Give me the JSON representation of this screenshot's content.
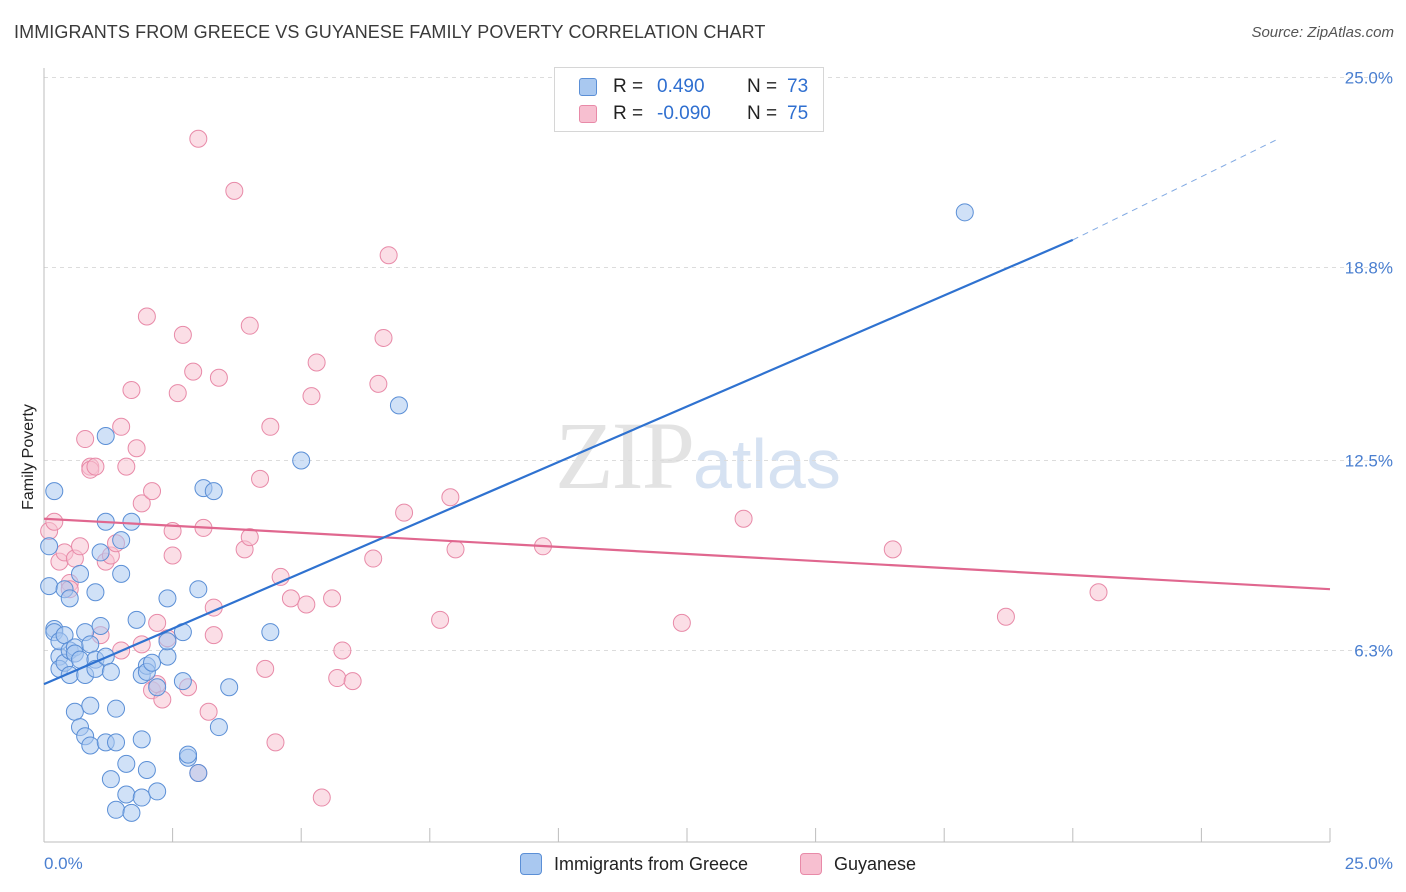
{
  "header": {
    "title": "IMMIGRANTS FROM GREECE VS GUYANESE FAMILY POVERTY CORRELATION CHART",
    "source": "Source: ZipAtlas.com"
  },
  "watermark": {
    "zip": "ZIP",
    "atlas": "atlas"
  },
  "legend": {
    "r_label": "R =",
    "n_label": "N =",
    "rows": [
      {
        "r": "0.490",
        "n": "73",
        "color": "#a9c8f0"
      },
      {
        "r": "-0.090",
        "n": "75",
        "color": "#f7bfd0"
      }
    ]
  },
  "colors": {
    "blue_fill": "#a9c8f0",
    "blue_stroke": "#5b8fd6",
    "blue_line": "#2f72d0",
    "pink_fill": "#f7c2d2",
    "pink_stroke": "#e88aa8",
    "pink_line": "#e0678f",
    "tick": "#4a7fd0",
    "grid": "#dcdcdc"
  },
  "chart_data": {
    "type": "scatter",
    "title": "IMMIGRANTS FROM GREECE VS GUYANESE FAMILY POVERTY CORRELATION CHART",
    "xlabel": "",
    "ylabel": "Family Poverty",
    "xlim": [
      0,
      25
    ],
    "ylim": [
      0,
      25.6
    ],
    "x_tick_labels": [
      "0.0%",
      "25.0%"
    ],
    "y_ticks": [
      6.3,
      12.5,
      18.8,
      25.0
    ],
    "y_tick_labels": [
      "6.3%",
      "12.5%",
      "18.8%",
      "25.0%"
    ],
    "series": [
      {
        "name": "Immigrants from Greece",
        "r": 0.49,
        "n": 73,
        "trend": {
          "x0": 0.0,
          "y0": 5.2,
          "x1": 20.0,
          "y1": 19.7,
          "dashed_to_x": 24.0,
          "dashed_to_y": 23.0
        },
        "points": [
          [
            0.1,
            9.7
          ],
          [
            0.1,
            8.4
          ],
          [
            0.2,
            11.5
          ],
          [
            0.2,
            7.0
          ],
          [
            0.2,
            6.9
          ],
          [
            0.3,
            6.1
          ],
          [
            0.3,
            6.6
          ],
          [
            0.3,
            5.7
          ],
          [
            0.4,
            8.3
          ],
          [
            0.4,
            6.8
          ],
          [
            0.4,
            5.9
          ],
          [
            0.5,
            5.5
          ],
          [
            0.5,
            6.3
          ],
          [
            0.5,
            8.0
          ],
          [
            0.6,
            6.4
          ],
          [
            0.6,
            6.2
          ],
          [
            0.6,
            4.3
          ],
          [
            0.7,
            3.8
          ],
          [
            0.7,
            6.0
          ],
          [
            0.7,
            8.8
          ],
          [
            0.8,
            5.5
          ],
          [
            0.8,
            6.9
          ],
          [
            0.8,
            3.5
          ],
          [
            0.9,
            6.5
          ],
          [
            0.9,
            3.2
          ],
          [
            0.9,
            4.5
          ],
          [
            1.0,
            6.0
          ],
          [
            1.0,
            5.7
          ],
          [
            1.0,
            8.2
          ],
          [
            1.1,
            9.5
          ],
          [
            1.1,
            7.1
          ],
          [
            1.2,
            10.5
          ],
          [
            1.2,
            6.1
          ],
          [
            1.2,
            3.3
          ],
          [
            1.2,
            13.3
          ],
          [
            1.3,
            2.1
          ],
          [
            1.3,
            5.6
          ],
          [
            1.4,
            1.1
          ],
          [
            1.4,
            4.4
          ],
          [
            1.4,
            3.3
          ],
          [
            1.5,
            8.8
          ],
          [
            1.5,
            9.9
          ],
          [
            1.6,
            2.6
          ],
          [
            1.6,
            1.6
          ],
          [
            1.7,
            1.0
          ],
          [
            1.7,
            10.5
          ],
          [
            1.8,
            7.3
          ],
          [
            1.9,
            5.5
          ],
          [
            1.9,
            3.4
          ],
          [
            1.9,
            1.5
          ],
          [
            2.0,
            5.8
          ],
          [
            2.0,
            2.4
          ],
          [
            2.0,
            5.6
          ],
          [
            2.2,
            1.7
          ],
          [
            2.2,
            5.1
          ],
          [
            2.4,
            8.0
          ],
          [
            2.4,
            6.1
          ],
          [
            2.4,
            6.6
          ],
          [
            2.7,
            5.3
          ],
          [
            2.7,
            6.9
          ],
          [
            2.8,
            2.8
          ],
          [
            2.8,
            2.9
          ],
          [
            3.0,
            2.3
          ],
          [
            3.0,
            8.3
          ],
          [
            3.1,
            11.6
          ],
          [
            3.3,
            11.5
          ],
          [
            3.4,
            3.8
          ],
          [
            3.6,
            5.1
          ],
          [
            4.4,
            6.9
          ],
          [
            5.0,
            12.5
          ],
          [
            6.9,
            14.3
          ],
          [
            17.9,
            20.6
          ],
          [
            2.1,
            5.9
          ]
        ]
      },
      {
        "name": "Guyanese",
        "r": -0.09,
        "n": 75,
        "trend": {
          "x0": 0.0,
          "y0": 10.6,
          "x1": 25.0,
          "y1": 8.3
        },
        "points": [
          [
            0.1,
            10.2
          ],
          [
            0.2,
            10.5
          ],
          [
            0.3,
            9.2
          ],
          [
            0.4,
            9.5
          ],
          [
            0.5,
            8.5
          ],
          [
            0.5,
            8.3
          ],
          [
            0.6,
            9.3
          ],
          [
            0.7,
            9.7
          ],
          [
            0.8,
            13.2
          ],
          [
            0.9,
            12.3
          ],
          [
            0.9,
            12.2
          ],
          [
            1.0,
            12.3
          ],
          [
            1.1,
            6.8
          ],
          [
            1.2,
            9.2
          ],
          [
            1.3,
            9.4
          ],
          [
            1.4,
            9.8
          ],
          [
            1.5,
            13.6
          ],
          [
            1.5,
            6.3
          ],
          [
            1.6,
            12.3
          ],
          [
            1.7,
            14.8
          ],
          [
            1.8,
            12.9
          ],
          [
            1.9,
            11.1
          ],
          [
            1.9,
            6.5
          ],
          [
            2.0,
            17.2
          ],
          [
            2.1,
            5.0
          ],
          [
            2.1,
            11.5
          ],
          [
            2.2,
            5.2
          ],
          [
            2.2,
            7.2
          ],
          [
            2.3,
            4.7
          ],
          [
            2.4,
            6.7
          ],
          [
            2.5,
            9.4
          ],
          [
            2.5,
            10.2
          ],
          [
            2.6,
            14.7
          ],
          [
            2.7,
            16.6
          ],
          [
            2.8,
            5.1
          ],
          [
            2.9,
            15.4
          ],
          [
            3.0,
            23.0
          ],
          [
            3.0,
            2.3
          ],
          [
            3.1,
            10.3
          ],
          [
            3.2,
            4.3
          ],
          [
            3.3,
            7.7
          ],
          [
            3.3,
            6.8
          ],
          [
            3.4,
            15.2
          ],
          [
            3.7,
            21.3
          ],
          [
            3.9,
            9.6
          ],
          [
            4.0,
            16.9
          ],
          [
            4.0,
            10.0
          ],
          [
            4.2,
            11.9
          ],
          [
            4.3,
            5.7
          ],
          [
            4.4,
            13.6
          ],
          [
            4.5,
            3.3
          ],
          [
            4.6,
            8.7
          ],
          [
            4.8,
            8.0
          ],
          [
            5.1,
            7.8
          ],
          [
            5.2,
            14.6
          ],
          [
            5.3,
            15.7
          ],
          [
            5.4,
            1.5
          ],
          [
            5.6,
            8.0
          ],
          [
            5.7,
            5.4
          ],
          [
            5.8,
            6.3
          ],
          [
            6.0,
            5.3
          ],
          [
            6.4,
            9.3
          ],
          [
            6.5,
            15.0
          ],
          [
            6.6,
            16.5
          ],
          [
            6.7,
            19.2
          ],
          [
            7.0,
            10.8
          ],
          [
            7.7,
            7.3
          ],
          [
            7.9,
            11.3
          ],
          [
            8.0,
            9.6
          ],
          [
            9.7,
            9.7
          ],
          [
            12.4,
            7.2
          ],
          [
            13.6,
            10.6
          ],
          [
            16.5,
            9.6
          ],
          [
            18.7,
            7.4
          ],
          [
            20.5,
            8.2
          ]
        ]
      }
    ]
  },
  "bottom_legend": {
    "items": [
      {
        "label": "Immigrants from Greece",
        "color": "#a9c8f0"
      },
      {
        "label": "Guyanese",
        "color": "#f7bfd0"
      }
    ]
  }
}
